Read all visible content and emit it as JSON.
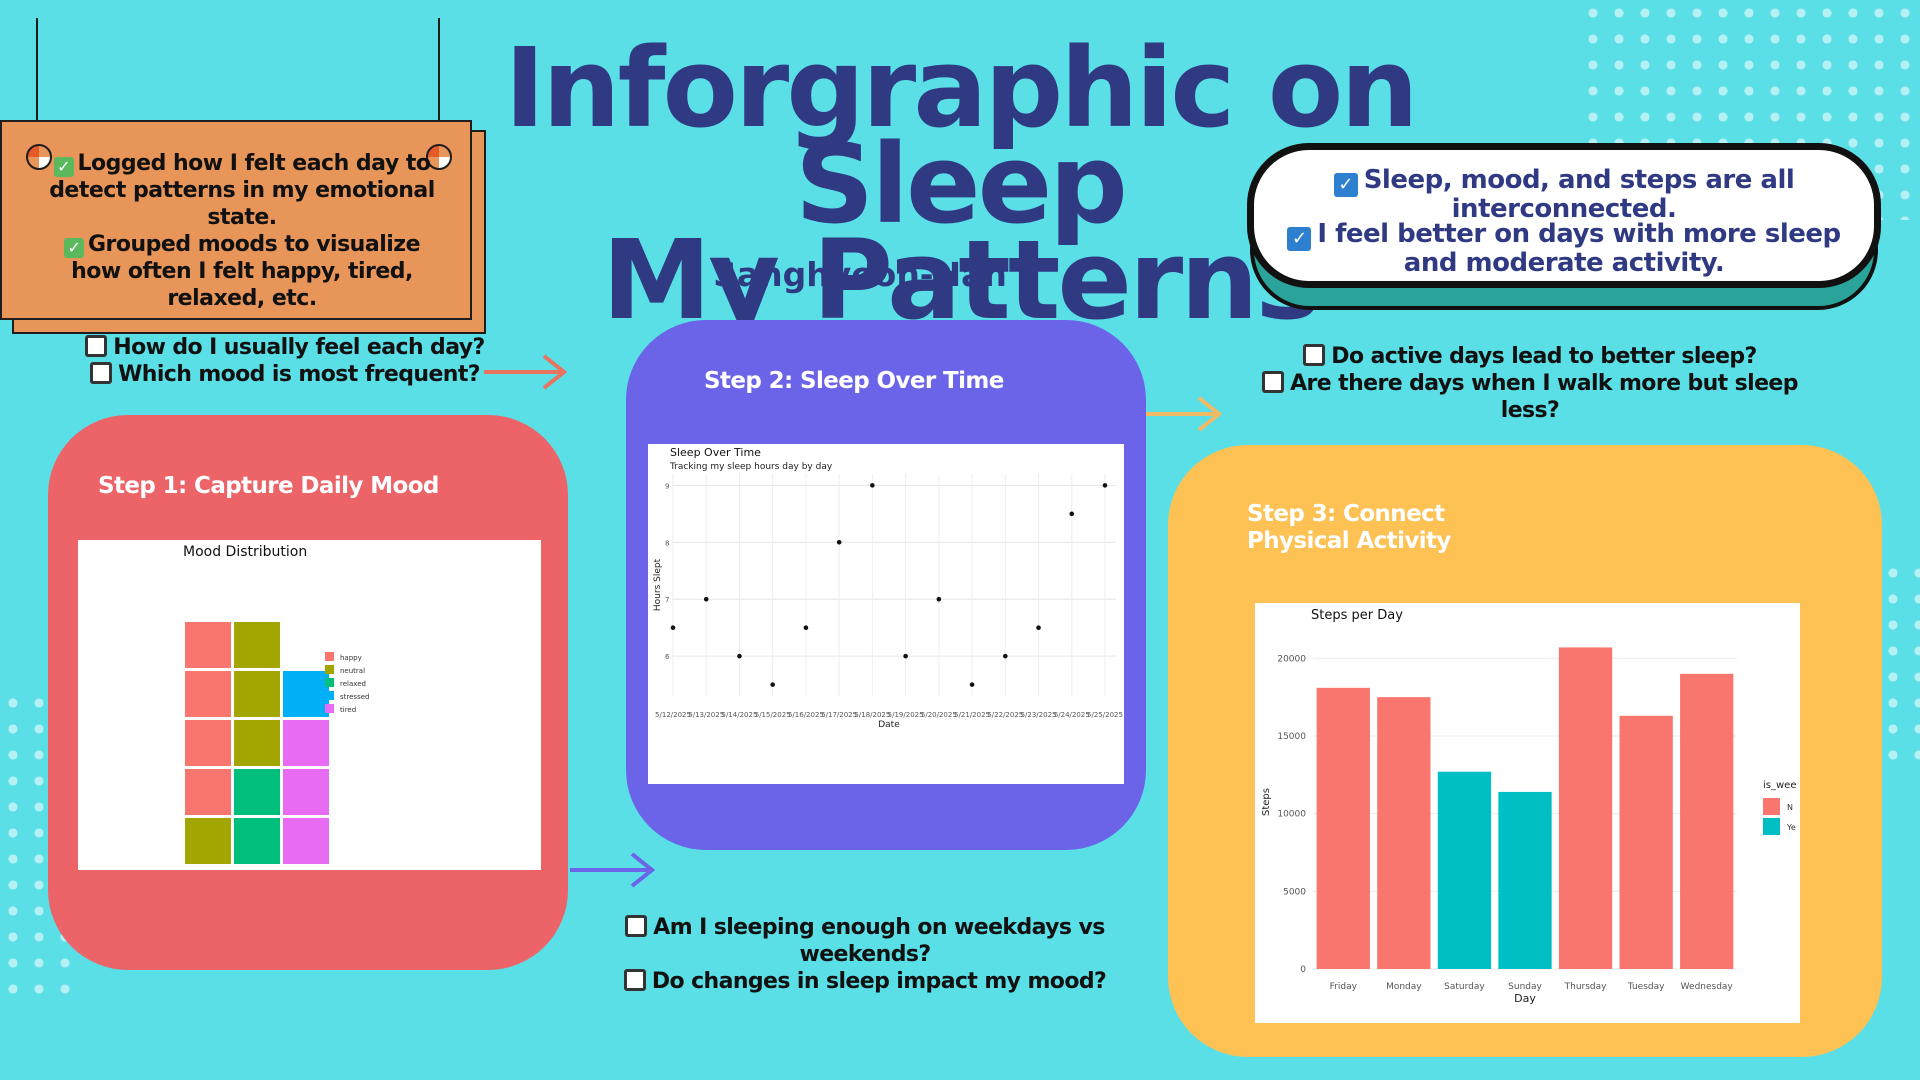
{
  "title": {
    "line1": "Inforgraphic on Sleep",
    "line2": "My Patterns"
  },
  "author": "Sanghyeon-Han",
  "note": {
    "line1": "Logged how I felt each day to detect patterns in my emotional state.",
    "line2": "Grouped moods to visualize how often I felt happy, tired, relaxed, etc."
  },
  "bubble": {
    "line1": "Sleep, mood, and steps are all interconnected.",
    "line2": "I feel better on days with more sleep and moderate activity."
  },
  "questions": {
    "q1": "How do I usually feel each day?",
    "q2": "Which mood is most frequent?",
    "q3": "Do active days lead to better sleep?",
    "q4": "Are there days when I walk more but sleep less?",
    "q5": "Am I sleeping enough on weekdays vs weekends?",
    "q6": "Do changes in sleep impact my mood?"
  },
  "cards": {
    "step1": "Step 1: Capture Daily Mood",
    "step2": "Step 2: Sleep Over Time",
    "step3": "Step 3: Connect Physical Activity"
  },
  "colors": {
    "background": "#5adfe6",
    "step1": "#ec6468",
    "step2": "#6b63e8",
    "step3": "#fdc154",
    "accent": "#2f3a83"
  },
  "chart_data": [
    {
      "type": "waffle",
      "title": "Mood Distribution",
      "legend": [
        "happy",
        "neutral",
        "relaxed",
        "stressed",
        "tired"
      ],
      "legend_colors": [
        "#f8766d",
        "#a3a500",
        "#00bf7d",
        "#00b0f6",
        "#e76bf3"
      ],
      "columns": [
        [
          "neutral",
          "happy",
          "happy",
          "happy",
          "happy"
        ],
        [
          "relaxed",
          "relaxed",
          "neutral",
          "neutral",
          "neutral"
        ],
        [
          "tired",
          "tired",
          "tired",
          "stressed"
        ]
      ]
    },
    {
      "type": "scatter",
      "title": "Sleep Over Time",
      "subtitle": "Tracking my sleep hours day by day",
      "xlabel": "Date",
      "ylabel": "Hours Slept",
      "x": [
        "5/12/2025",
        "5/13/2025",
        "5/14/2025",
        "5/15/2025",
        "5/16/2025",
        "5/17/2025",
        "5/18/2025",
        "5/19/2025",
        "5/20/2025",
        "5/21/2025",
        "5/22/2025",
        "5/23/2025",
        "5/24/2025",
        "5/25/2025"
      ],
      "y": [
        6.5,
        7,
        6,
        5.5,
        6.5,
        8,
        9,
        6,
        7,
        5.5,
        6,
        6.5,
        8.5,
        9
      ],
      "yticks": [
        6,
        7,
        8,
        9
      ],
      "ylim": [
        5.3,
        9.2
      ]
    },
    {
      "type": "bar",
      "title": "Steps per Day",
      "xlabel": "Day",
      "ylabel": "Steps",
      "categories": [
        "Friday",
        "Monday",
        "Saturday",
        "Sunday",
        "Thursday",
        "Tuesday",
        "Wednesday"
      ],
      "values": [
        18100,
        17500,
        12700,
        11400,
        20700,
        16300,
        19000
      ],
      "is_weekend": [
        "No",
        "No",
        "Yes",
        "Yes",
        "No",
        "No",
        "No"
      ],
      "colors": {
        "No": "#f8766d",
        "Yes": "#00bfc4"
      },
      "legend_title": "is_wee",
      "legend_labels": [
        "N",
        "Ye"
      ],
      "yticks": [
        0,
        5000,
        10000,
        15000,
        20000
      ],
      "ylim": [
        0,
        21500
      ]
    }
  ]
}
